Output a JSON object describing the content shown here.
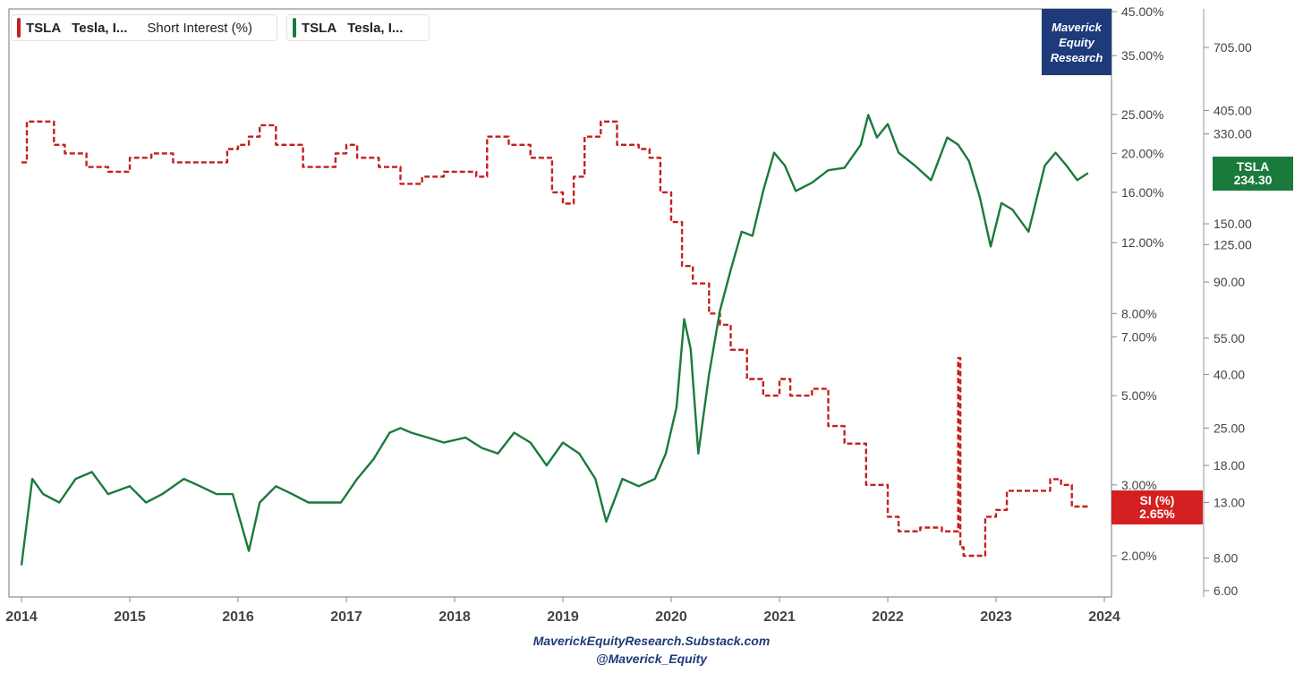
{
  "legend": [
    {
      "symbol": "TSLA",
      "name": "Tesla, I...",
      "metric": "Short Interest (%)",
      "color": "#c41f1f"
    },
    {
      "symbol": "TSLA",
      "name": "Tesla, I...",
      "metric": "",
      "color": "#1a7a3c"
    }
  ],
  "badge": {
    "line1": "Maverick",
    "line2": "Equity",
    "line3": "Research"
  },
  "footer": {
    "line1": "MaverickEquityResearch.Substack.com",
    "line2": "@Maverick_Equity"
  },
  "price_tag": {
    "label": "TSLA",
    "value": "234.30"
  },
  "si_tag": {
    "label": "SI (%)",
    "value": "2.65%"
  },
  "chart_data": {
    "type": "line",
    "x_ticks": [
      "2014",
      "2015",
      "2016",
      "2017",
      "2018",
      "2019",
      "2020",
      "2021",
      "2022",
      "2023",
      "2024"
    ],
    "y_left_ticks": [
      "45.00%",
      "35.00%",
      "25.00%",
      "20.00%",
      "16.00%",
      "12.00%",
      "8.00%",
      "7.00%",
      "5.00%",
      "3.00%",
      "2.00%"
    ],
    "y_left_values": [
      45,
      35,
      25,
      20,
      16,
      12,
      8,
      7,
      5,
      3,
      2
    ],
    "y_right_ticks": [
      "705.00",
      "405.00",
      "330.00",
      "150.00",
      "125.00",
      "90.00",
      "55.00",
      "40.00",
      "25.00",
      "18.00",
      "13.00",
      "8.00",
      "6.00"
    ],
    "y_right_values": [
      705,
      405,
      330,
      150,
      125,
      90,
      55,
      40,
      25,
      18,
      13,
      8,
      6
    ],
    "series": [
      {
        "name": "TSLA Short Interest (%)",
        "axis": "left",
        "color": "#c41f1f",
        "style": "dashed",
        "x": [
          2014.0,
          2014.05,
          2014.15,
          2014.3,
          2014.4,
          2014.6,
          2014.8,
          2015.0,
          2015.2,
          2015.4,
          2015.6,
          2015.9,
          2016.0,
          2016.1,
          2016.2,
          2016.35,
          2016.6,
          2016.9,
          2017.0,
          2017.1,
          2017.3,
          2017.5,
          2017.7,
          2017.9,
          2018.0,
          2018.2,
          2018.3,
          2018.5,
          2018.7,
          2018.9,
          2019.0,
          2019.1,
          2019.2,
          2019.35,
          2019.5,
          2019.7,
          2019.8,
          2019.9,
          2020.0,
          2020.1,
          2020.2,
          2020.35,
          2020.45,
          2020.55,
          2020.7,
          2020.85,
          2021.0,
          2021.1,
          2021.3,
          2021.45,
          2021.6,
          2021.8,
          2022.0,
          2022.1,
          2022.3,
          2022.5,
          2022.64,
          2022.65,
          2022.67,
          2022.7,
          2022.9,
          2023.0,
          2023.1,
          2023.25,
          2023.4,
          2023.5,
          2023.6,
          2023.7,
          2023.85
        ],
        "y": [
          19,
          24,
          24,
          21,
          20,
          18.5,
          18,
          19.5,
          20,
          19,
          19,
          20.5,
          21,
          22,
          23.5,
          21,
          18.5,
          20,
          21,
          19.5,
          18.5,
          16.8,
          17.5,
          18,
          18,
          17.5,
          22,
          21,
          19.5,
          16,
          15,
          17.5,
          22,
          24,
          21,
          20.5,
          19.5,
          16,
          13.5,
          10.5,
          9.5,
          8,
          7.5,
          6.5,
          5.5,
          5,
          5.5,
          5,
          5.2,
          4.2,
          3.8,
          3,
          2.5,
          2.3,
          2.35,
          2.3,
          2.3,
          6.2,
          2.1,
          2.0,
          2.5,
          2.6,
          2.9,
          2.9,
          2.9,
          3.1,
          3.0,
          2.65,
          2.65
        ]
      },
      {
        "name": "TSLA",
        "axis": "right",
        "color": "#1a7a3c",
        "style": "solid",
        "x": [
          2014.0,
          2014.1,
          2014.2,
          2014.35,
          2014.5,
          2014.65,
          2014.8,
          2015.0,
          2015.15,
          2015.3,
          2015.5,
          2015.65,
          2015.8,
          2015.95,
          2016.1,
          2016.2,
          2016.35,
          2016.5,
          2016.65,
          2016.8,
          2016.95,
          2017.1,
          2017.25,
          2017.4,
          2017.5,
          2017.6,
          2017.75,
          2017.9,
          2018.1,
          2018.25,
          2018.4,
          2018.55,
          2018.7,
          2018.85,
          2019.0,
          2019.15,
          2019.3,
          2019.4,
          2019.55,
          2019.7,
          2019.85,
          2019.95,
          2020.05,
          2020.12,
          2020.18,
          2020.25,
          2020.35,
          2020.45,
          2020.55,
          2020.65,
          2020.75,
          2020.85,
          2020.95,
          2021.05,
          2021.15,
          2021.3,
          2021.45,
          2021.6,
          2021.75,
          2021.82,
          2021.9,
          2022.0,
          2022.1,
          2022.25,
          2022.4,
          2022.55,
          2022.65,
          2022.75,
          2022.85,
          2022.95,
          2023.05,
          2023.15,
          2023.3,
          2023.45,
          2023.55,
          2023.65,
          2023.75,
          2023.85
        ],
        "y": [
          7.5,
          16,
          14,
          13,
          16,
          17,
          14,
          15,
          13,
          14,
          16,
          15,
          14,
          14,
          8.5,
          13,
          15,
          14,
          13,
          13,
          13,
          16,
          19,
          24,
          25,
          24,
          23,
          22,
          23,
          21,
          20,
          24,
          22,
          18,
          22,
          20,
          16,
          11,
          16,
          15,
          16,
          20,
          30,
          65,
          50,
          20,
          40,
          70,
          100,
          140,
          135,
          200,
          280,
          250,
          200,
          215,
          240,
          245,
          300,
          390,
          320,
          360,
          280,
          250,
          220,
          320,
          300,
          260,
          190,
          123,
          180,
          170,
          140,
          250,
          280,
          250,
          220,
          234
        ]
      }
    ]
  }
}
